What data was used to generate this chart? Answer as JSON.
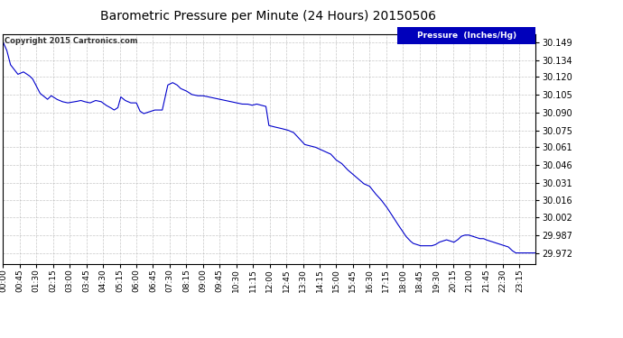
{
  "title": "Barometric Pressure per Minute (24 Hours) 20150506",
  "copyright": "Copyright 2015 Cartronics.com",
  "legend_label": "Pressure  (Inches/Hg)",
  "line_color": "#0000CC",
  "background_color": "#ffffff",
  "grid_color": "#b0b0b0",
  "yticks": [
    29.972,
    29.987,
    30.002,
    30.016,
    30.031,
    30.046,
    30.061,
    30.075,
    30.09,
    30.105,
    30.12,
    30.134,
    30.149
  ],
  "ylim": [
    29.963,
    30.156
  ],
  "xtick_labels": [
    "00:00",
    "00:45",
    "01:30",
    "02:15",
    "03:00",
    "03:45",
    "04:30",
    "05:15",
    "06:00",
    "06:45",
    "07:30",
    "08:15",
    "09:00",
    "09:45",
    "10:30",
    "11:15",
    "12:00",
    "12:45",
    "13:30",
    "14:15",
    "15:00",
    "15:45",
    "16:30",
    "17:15",
    "18:00",
    "18:45",
    "19:30",
    "20:15",
    "21:00",
    "21:45",
    "22:30",
    "23:15"
  ],
  "pressure_keypoints": [
    [
      0,
      30.149
    ],
    [
      10,
      30.142
    ],
    [
      20,
      30.13
    ],
    [
      40,
      30.122
    ],
    [
      55,
      30.124
    ],
    [
      70,
      30.121
    ],
    [
      80,
      30.118
    ],
    [
      100,
      30.106
    ],
    [
      120,
      30.101
    ],
    [
      130,
      30.104
    ],
    [
      145,
      30.101
    ],
    [
      160,
      30.099
    ],
    [
      175,
      30.098
    ],
    [
      195,
      30.099
    ],
    [
      210,
      30.1
    ],
    [
      220,
      30.099
    ],
    [
      235,
      30.098
    ],
    [
      250,
      30.1
    ],
    [
      265,
      30.099
    ],
    [
      278,
      30.096
    ],
    [
      290,
      30.094
    ],
    [
      300,
      30.092
    ],
    [
      310,
      30.094
    ],
    [
      318,
      30.103
    ],
    [
      330,
      30.1
    ],
    [
      345,
      30.098
    ],
    [
      360,
      30.098
    ],
    [
      370,
      30.091
    ],
    [
      380,
      30.089
    ],
    [
      390,
      30.09
    ],
    [
      400,
      30.091
    ],
    [
      410,
      30.092
    ],
    [
      430,
      30.092
    ],
    [
      445,
      30.113
    ],
    [
      458,
      30.115
    ],
    [
      470,
      30.113
    ],
    [
      480,
      30.11
    ],
    [
      495,
      30.108
    ],
    [
      510,
      30.105
    ],
    [
      525,
      30.104
    ],
    [
      540,
      30.104
    ],
    [
      555,
      30.103
    ],
    [
      570,
      30.102
    ],
    [
      585,
      30.101
    ],
    [
      600,
      30.1
    ],
    [
      615,
      30.099
    ],
    [
      630,
      30.098
    ],
    [
      645,
      30.097
    ],
    [
      660,
      30.097
    ],
    [
      673,
      30.096
    ],
    [
      685,
      30.097
    ],
    [
      698,
      30.096
    ],
    [
      710,
      30.095
    ],
    [
      718,
      30.079
    ],
    [
      730,
      30.078
    ],
    [
      745,
      30.077
    ],
    [
      758,
      30.076
    ],
    [
      770,
      30.075
    ],
    [
      785,
      30.073
    ],
    [
      800,
      30.068
    ],
    [
      815,
      30.063
    ],
    [
      828,
      30.062
    ],
    [
      842,
      30.061
    ],
    [
      856,
      30.059
    ],
    [
      870,
      30.057
    ],
    [
      885,
      30.055
    ],
    [
      900,
      30.05
    ],
    [
      915,
      30.047
    ],
    [
      930,
      30.042
    ],
    [
      945,
      30.038
    ],
    [
      960,
      30.034
    ],
    [
      975,
      30.03
    ],
    [
      990,
      30.028
    ],
    [
      1005,
      30.022
    ],
    [
      1020,
      30.017
    ],
    [
      1035,
      30.011
    ],
    [
      1050,
      30.004
    ],
    [
      1062,
      29.998
    ],
    [
      1075,
      29.992
    ],
    [
      1088,
      29.986
    ],
    [
      1100,
      29.982
    ],
    [
      1108,
      29.98
    ],
    [
      1118,
      29.979
    ],
    [
      1128,
      29.978
    ],
    [
      1138,
      29.978
    ],
    [
      1148,
      29.978
    ],
    [
      1158,
      29.978
    ],
    [
      1168,
      29.979
    ],
    [
      1178,
      29.981
    ],
    [
      1188,
      29.982
    ],
    [
      1198,
      29.983
    ],
    [
      1208,
      29.982
    ],
    [
      1218,
      29.981
    ],
    [
      1228,
      29.983
    ],
    [
      1238,
      29.986
    ],
    [
      1248,
      29.987
    ],
    [
      1258,
      29.987
    ],
    [
      1268,
      29.986
    ],
    [
      1278,
      29.985
    ],
    [
      1288,
      29.984
    ],
    [
      1298,
      29.984
    ],
    [
      1305,
      29.983
    ],
    [
      1315,
      29.982
    ],
    [
      1325,
      29.981
    ],
    [
      1335,
      29.98
    ],
    [
      1345,
      29.979
    ],
    [
      1355,
      29.978
    ],
    [
      1365,
      29.977
    ],
    [
      1375,
      29.974
    ],
    [
      1385,
      29.972
    ],
    [
      1395,
      29.972
    ],
    [
      1410,
      29.972
    ],
    [
      1425,
      29.972
    ],
    [
      1439,
      29.972
    ]
  ]
}
